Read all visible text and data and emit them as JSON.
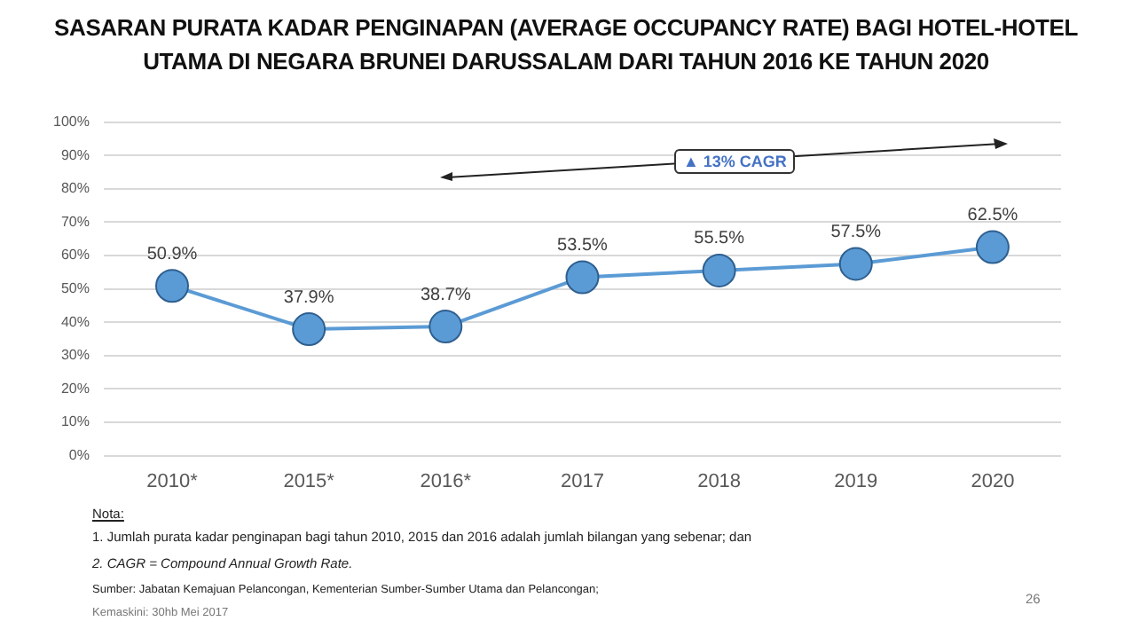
{
  "chart_data": {
    "type": "line",
    "title": "SASARAN PURATA KADAR PENGINAPAN (AVERAGE OCCUPANCY RATE) BAGI HOTEL-HOTEL UTAMA DI NEGARA BRUNEI DARUSSALAM DARI TAHUN 2016 KE TAHUN 2020",
    "categories": [
      "2010*",
      "2015*",
      "2016*",
      "2017",
      "2018",
      "2019",
      "2020"
    ],
    "series": [
      {
        "color": "#5b9bd5",
        "values": [
          50.9,
          37.9,
          38.7,
          53.5,
          55.5,
          57.5,
          62.5
        ],
        "value_labels": [
          "50.9%",
          "37.9%",
          "38.7%",
          "53.5%",
          "55.5%",
          "57.5%",
          "62.5%"
        ]
      }
    ],
    "ylim": [
      0,
      100
    ],
    "yticks": [
      {
        "value": 0,
        "label": "0%"
      },
      {
        "value": 10,
        "label": "10%"
      },
      {
        "value": 20,
        "label": "20%"
      },
      {
        "value": 30,
        "label": "30%"
      },
      {
        "value": 40,
        "label": "40%"
      },
      {
        "value": 50,
        "label": "50%"
      },
      {
        "value": 60,
        "label": "60%"
      },
      {
        "value": 70,
        "label": "70%"
      },
      {
        "value": 80,
        "label": "80%"
      },
      {
        "value": 90,
        "label": "90%"
      },
      {
        "value": 100,
        "label": "100%"
      }
    ],
    "grid": "y",
    "legend": false,
    "marker": "circle",
    "line_style": "solid",
    "annotations": [
      "▲ 13% CAGR",
      "Nota:",
      "1. Jumlah purata kadar penginapan bagi tahun 2010, 2015 dan 2016 adalah jumlah bilangan yang sebenar; dan",
      "2. CAGR = Compound Annual Growth Rate.",
      "Sumber: Jabatan Kemajuan Pelancongan, Kementerian Sumber-Sumber Utama dan Pelancongan;",
      "Kemaskini: 30hb Mei 2017",
      "26"
    ]
  }
}
